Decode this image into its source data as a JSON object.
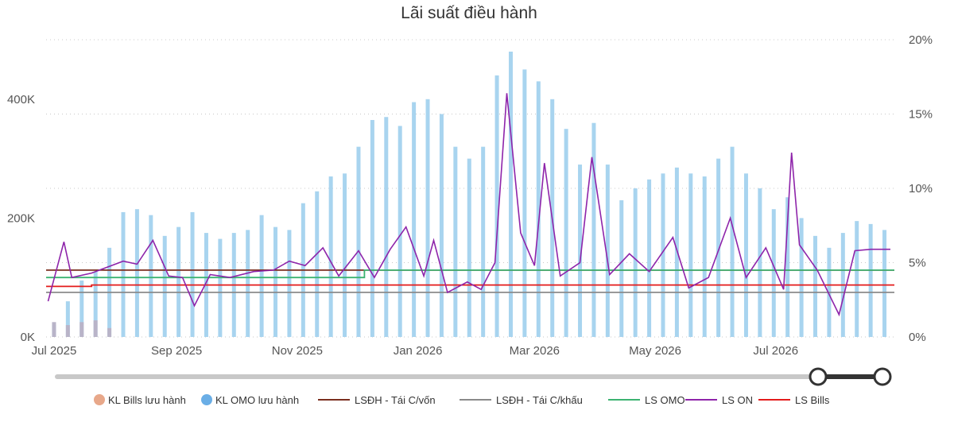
{
  "chart_data": {
    "type": "bar+line",
    "title": "Lãi suất điều hành",
    "x_range": [
      "2025-06-27",
      "2026-08-30"
    ],
    "x_ticks": [
      {
        "date": "2025-07-01",
        "label": "Jul 2025"
      },
      {
        "date": "2025-09-01",
        "label": "Sep 2025"
      },
      {
        "date": "2025-11-01",
        "label": "Nov 2025"
      },
      {
        "date": "2026-01-01",
        "label": "Jan 2026"
      },
      {
        "date": "2026-03-01",
        "label": "Mar 2026"
      },
      {
        "date": "2026-05-01",
        "label": "May 2026"
      },
      {
        "date": "2026-07-01",
        "label": "Jul 2026"
      }
    ],
    "y_left": {
      "min": 0,
      "max": 500000,
      "ticks": [
        0,
        200000,
        400000
      ],
      "tick_labels": [
        "0K",
        "200K",
        "400K"
      ]
    },
    "y_right": {
      "min": 0,
      "max": 20,
      "ticks": [
        0,
        5,
        10,
        15,
        20
      ],
      "tick_labels": [
        "0%",
        "5%",
        "10%",
        "15%",
        "20%"
      ]
    },
    "grid": "horizontal dotted",
    "legend_position": "bottom",
    "legend": [
      {
        "label": "KL Bills lưu hành",
        "marker": "circle",
        "color": "#e8a88a"
      },
      {
        "label": "KL OMO lưu hành",
        "marker": "circle",
        "color": "#6aaee6"
      },
      {
        "label": "LSĐH - Tái C/vốn",
        "marker": "line",
        "color": "#7a2e1e"
      },
      {
        "label": "LSĐH - Tái C/khấu",
        "marker": "line",
        "color": "#8a8a8a"
      },
      {
        "label": "LS OMO",
        "marker": "line",
        "color": "#3cb371"
      },
      {
        "label": "LS ON",
        "marker": "line",
        "color": "#8e24aa"
      },
      {
        "label": "LS Bills",
        "marker": "line",
        "color": "#e31b1b"
      }
    ],
    "series": [
      {
        "name": "KL OMO lưu hành",
        "kind": "bars",
        "axis": "left",
        "color": "#a8d4ef",
        "points": [
          [
            "2025-07-01",
            20000
          ],
          [
            "2025-07-08",
            60000
          ],
          [
            "2025-07-15",
            95000
          ],
          [
            "2025-07-22",
            110000
          ],
          [
            "2025-07-29",
            150000
          ],
          [
            "2025-08-05",
            210000
          ],
          [
            "2025-08-12",
            215000
          ],
          [
            "2025-08-19",
            205000
          ],
          [
            "2025-08-26",
            170000
          ],
          [
            "2025-09-02",
            185000
          ],
          [
            "2025-09-09",
            210000
          ],
          [
            "2025-09-16",
            175000
          ],
          [
            "2025-09-23",
            165000
          ],
          [
            "2025-09-30",
            175000
          ],
          [
            "2025-10-07",
            180000
          ],
          [
            "2025-10-14",
            205000
          ],
          [
            "2025-10-21",
            185000
          ],
          [
            "2025-10-28",
            180000
          ],
          [
            "2025-11-04",
            225000
          ],
          [
            "2025-11-11",
            245000
          ],
          [
            "2025-11-18",
            270000
          ],
          [
            "2025-11-25",
            275000
          ],
          [
            "2025-12-02",
            320000
          ],
          [
            "2025-12-09",
            365000
          ],
          [
            "2025-12-16",
            370000
          ],
          [
            "2025-12-23",
            355000
          ],
          [
            "2025-12-30",
            395000
          ],
          [
            "2026-01-06",
            400000
          ],
          [
            "2026-01-13",
            375000
          ],
          [
            "2026-01-20",
            320000
          ],
          [
            "2026-01-27",
            300000
          ],
          [
            "2026-02-03",
            320000
          ],
          [
            "2026-02-10",
            440000
          ],
          [
            "2026-02-17",
            480000
          ],
          [
            "2026-02-24",
            450000
          ],
          [
            "2026-03-03",
            430000
          ],
          [
            "2026-03-10",
            400000
          ],
          [
            "2026-03-17",
            350000
          ],
          [
            "2026-03-24",
            290000
          ],
          [
            "2026-03-31",
            360000
          ],
          [
            "2026-04-07",
            290000
          ],
          [
            "2026-04-14",
            230000
          ],
          [
            "2026-04-21",
            250000
          ],
          [
            "2026-04-28",
            265000
          ],
          [
            "2026-05-05",
            275000
          ],
          [
            "2026-05-12",
            285000
          ],
          [
            "2026-05-19",
            275000
          ],
          [
            "2026-05-26",
            270000
          ],
          [
            "2026-06-02",
            300000
          ],
          [
            "2026-06-09",
            320000
          ],
          [
            "2026-06-16",
            275000
          ],
          [
            "2026-06-23",
            250000
          ],
          [
            "2026-06-30",
            215000
          ],
          [
            "2026-07-07",
            235000
          ],
          [
            "2026-07-14",
            200000
          ],
          [
            "2026-07-21",
            170000
          ],
          [
            "2026-07-28",
            150000
          ],
          [
            "2026-08-04",
            175000
          ],
          [
            "2026-08-11",
            195000
          ],
          [
            "2026-08-18",
            190000
          ],
          [
            "2026-08-25",
            180000
          ]
        ]
      },
      {
        "name": "KL Bills lưu hành",
        "kind": "bars",
        "axis": "left",
        "color": "#b9b4c8",
        "points": [
          [
            "2025-07-01",
            25000
          ],
          [
            "2025-07-08",
            20000
          ],
          [
            "2025-07-15",
            25000
          ],
          [
            "2025-07-22",
            28000
          ],
          [
            "2025-07-29",
            15000
          ]
        ]
      },
      {
        "name": "LS ON",
        "kind": "line",
        "axis": "right",
        "color": "#8e24aa",
        "points": [
          [
            "2025-06-28",
            2.4
          ],
          [
            "2025-07-06",
            6.4
          ],
          [
            "2025-07-10",
            4.0
          ],
          [
            "2025-07-20",
            4.3
          ],
          [
            "2025-07-28",
            4.7
          ],
          [
            "2025-08-05",
            5.1
          ],
          [
            "2025-08-12",
            4.9
          ],
          [
            "2025-08-20",
            6.5
          ],
          [
            "2025-08-28",
            4.1
          ],
          [
            "2025-09-04",
            4.0
          ],
          [
            "2025-09-10",
            2.1
          ],
          [
            "2025-09-18",
            4.2
          ],
          [
            "2025-09-28",
            4.0
          ],
          [
            "2025-10-10",
            4.4
          ],
          [
            "2025-10-20",
            4.5
          ],
          [
            "2025-10-28",
            5.1
          ],
          [
            "2025-11-05",
            4.8
          ],
          [
            "2025-11-14",
            6.0
          ],
          [
            "2025-11-22",
            4.1
          ],
          [
            "2025-12-02",
            5.8
          ],
          [
            "2025-12-10",
            4.0
          ],
          [
            "2025-12-18",
            5.9
          ],
          [
            "2025-12-26",
            7.4
          ],
          [
            "2026-01-04",
            4.1
          ],
          [
            "2026-01-09",
            6.5
          ],
          [
            "2026-01-16",
            3.0
          ],
          [
            "2026-01-26",
            3.7
          ],
          [
            "2026-02-02",
            3.2
          ],
          [
            "2026-02-09",
            5.0
          ],
          [
            "2026-02-15",
            16.4
          ],
          [
            "2026-02-22",
            7.0
          ],
          [
            "2026-03-01",
            4.8
          ],
          [
            "2026-03-06",
            11.7
          ],
          [
            "2026-03-14",
            4.1
          ],
          [
            "2026-03-24",
            5.0
          ],
          [
            "2026-03-30",
            12.1
          ],
          [
            "2026-04-08",
            4.2
          ],
          [
            "2026-04-18",
            5.6
          ],
          [
            "2026-04-28",
            4.4
          ],
          [
            "2026-05-10",
            6.7
          ],
          [
            "2026-05-18",
            3.3
          ],
          [
            "2026-05-28",
            4.0
          ],
          [
            "2026-06-08",
            8.0
          ],
          [
            "2026-06-16",
            4.0
          ],
          [
            "2026-06-26",
            6.0
          ],
          [
            "2026-07-05",
            3.2
          ],
          [
            "2026-07-09",
            12.4
          ],
          [
            "2026-07-13",
            6.2
          ],
          [
            "2026-07-22",
            4.5
          ],
          [
            "2026-08-02",
            1.5
          ],
          [
            "2026-08-10",
            5.8
          ],
          [
            "2026-08-18",
            5.9
          ],
          [
            "2026-08-28",
            5.9
          ]
        ]
      },
      {
        "name": "LSĐH - Tái C/vốn",
        "kind": "step",
        "axis": "right",
        "color": "#7a2e1e",
        "points": [
          [
            "2025-06-27",
            4.5
          ],
          [
            "2026-08-30",
            4.5
          ]
        ]
      },
      {
        "name": "LS OMO",
        "kind": "step",
        "axis": "right",
        "color": "#3cb371",
        "points": [
          [
            "2025-06-27",
            4.0
          ],
          [
            "2025-12-05",
            4.0
          ],
          [
            "2025-12-05",
            4.5
          ],
          [
            "2026-08-30",
            4.5
          ]
        ]
      },
      {
        "name": "LS Bills",
        "kind": "step",
        "axis": "right",
        "color": "#e31b1b",
        "points": [
          [
            "2025-06-27",
            3.4
          ],
          [
            "2025-07-20",
            3.4
          ],
          [
            "2025-07-20",
            3.5
          ],
          [
            "2026-08-30",
            3.5
          ]
        ]
      },
      {
        "name": "LSĐH - Tái C/khấu",
        "kind": "step",
        "axis": "right",
        "color": "#8a8a8a",
        "points": [
          [
            "2025-06-27",
            3.0
          ],
          [
            "2026-08-30",
            3.0
          ]
        ]
      }
    ],
    "range_slider": {
      "selected_from": 0.922,
      "selected_to": 1.0
    }
  }
}
